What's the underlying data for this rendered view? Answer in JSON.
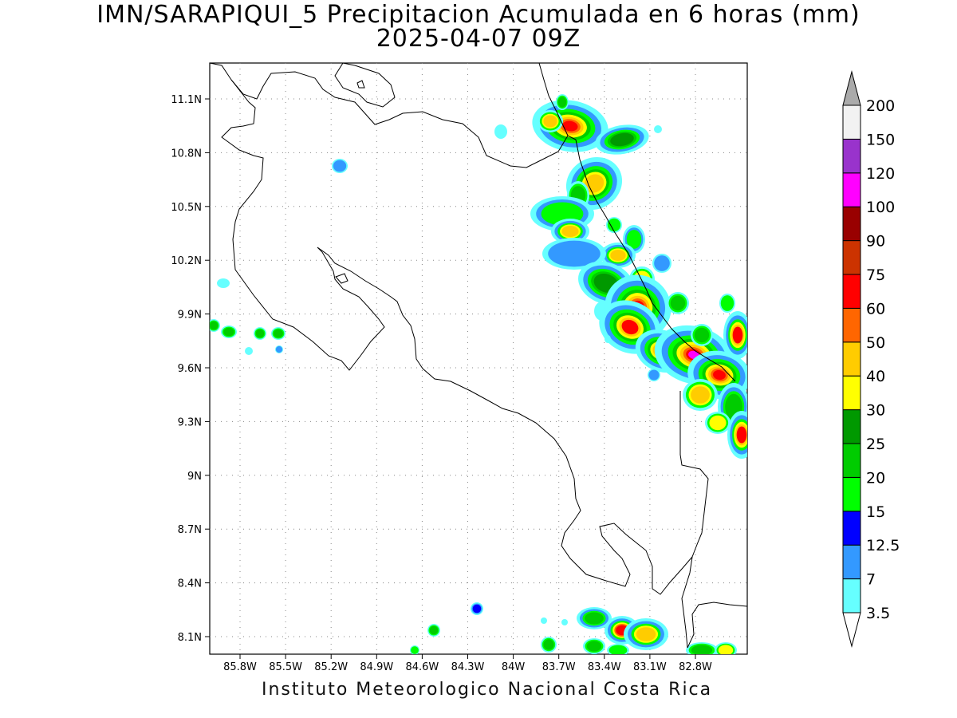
{
  "title_line1": "IMN/SARAPIQUI_5 Precipitacion Acumulada en 6 horas (mm)",
  "title_line2": "2025-04-07 09Z",
  "credit": "Instituto Meteorologico Nacional Costa Rica",
  "axes": {
    "lon_ticks": [
      "85.8W",
      "85.5W",
      "85.2W",
      "84.9W",
      "84.6W",
      "84.3W",
      "84W",
      "83.7W",
      "83.4W",
      "83.1W",
      "82.8W"
    ],
    "lat_ticks": [
      "11.1N",
      "10.8N",
      "10.5N",
      "10.2N",
      "9.9N",
      "9.6N",
      "9.3N",
      "9N",
      "8.7N",
      "8.4N",
      "8.1N"
    ],
    "grid": "dotted"
  },
  "colorbar": {
    "labels": [
      "3.5",
      "7",
      "12.5",
      "15",
      "20",
      "25",
      "30",
      "40",
      "50",
      "60",
      "75",
      "90",
      "100",
      "120",
      "150",
      "200"
    ],
    "colors": [
      "#ffffff",
      "#66ffff",
      "#3399ff",
      "#0000ff",
      "#00ff00",
      "#00cc00",
      "#009900",
      "#ffff00",
      "#ffcc00",
      "#ff6600",
      "#ff0000",
      "#cc3300",
      "#990000",
      "#ff00ff",
      "#9933cc",
      "#f2f2f2"
    ],
    "over_color": "#aaaaaa",
    "under_color": "#ffffff"
  }
}
